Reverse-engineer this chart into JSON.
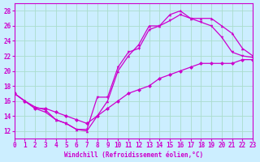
{
  "bg_color": "#cceeff",
  "line_color": "#cc00cc",
  "grid_color": "#aaddcc",
  "xlabel": "Windchill (Refroidissement éolien,°C)",
  "xlabel_color": "#cc00cc",
  "tick_color": "#cc00cc",
  "xlim": [
    0,
    23
  ],
  "ylim": [
    11,
    29
  ],
  "yticks": [
    12,
    14,
    16,
    18,
    20,
    22,
    24,
    26,
    28
  ],
  "xticks": [
    0,
    1,
    2,
    3,
    4,
    5,
    6,
    7,
    8,
    9,
    10,
    11,
    12,
    13,
    14,
    15,
    16,
    17,
    18,
    19,
    20,
    21,
    22,
    23
  ],
  "line1_x": [
    0,
    1,
    2,
    3,
    4,
    5,
    6,
    7,
    8,
    9,
    10,
    11,
    12,
    13,
    14,
    15,
    16,
    17,
    18,
    19,
    20,
    21,
    22,
    23
  ],
  "line1_y": [
    17,
    16,
    15,
    14.5,
    13.5,
    13,
    12.2,
    12.2,
    16.5,
    16.5,
    20.5,
    22.5,
    23,
    25.5,
    26,
    26.7,
    27.5,
    27,
    26.5,
    26,
    24.5,
    22.5,
    22,
    21.8
  ],
  "line2_x": [
    0,
    1,
    2,
    3,
    4,
    5,
    6,
    7,
    8,
    9,
    10,
    11,
    12,
    13,
    14,
    15,
    16,
    17,
    18,
    19,
    20,
    21,
    22,
    23
  ],
  "line2_y": [
    17,
    16,
    15.2,
    14.8,
    13.5,
    13,
    12.2,
    12,
    14,
    16,
    20,
    22,
    23.5,
    26,
    26,
    27.5,
    28,
    27,
    27,
    27,
    26,
    25,
    23,
    22
  ],
  "line3_x": [
    0,
    1,
    2,
    3,
    4,
    5,
    6,
    7,
    8,
    9,
    10,
    11,
    12,
    13,
    14,
    15,
    16,
    17,
    18,
    19,
    20,
    21,
    22,
    23
  ],
  "line3_y": [
    17,
    16,
    15,
    15,
    14.5,
    14,
    13.5,
    13,
    14,
    15,
    16,
    17,
    17.5,
    18,
    19,
    19.5,
    20,
    20.5,
    21,
    21,
    21,
    21,
    21.5,
    21.5
  ]
}
